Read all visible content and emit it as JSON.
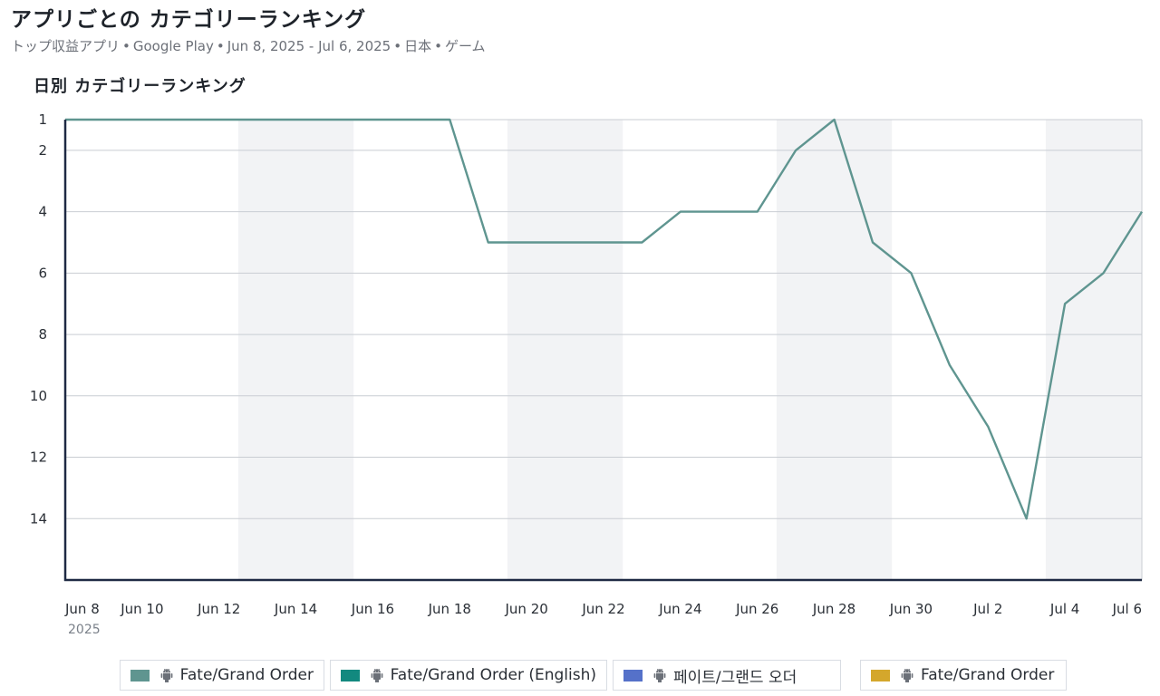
{
  "header": {
    "title": "アプリごとの カテゴリーランキング",
    "subtitle_parts": [
      "トップ収益アプリ",
      "Google Play",
      "Jun 8, 2025 - Jul 6, 2025",
      "日本",
      "ゲーム"
    ],
    "separator": "•"
  },
  "chart_title": "日別 カテゴリーランキング",
  "colors": {
    "series_line": "#5f9590",
    "grid": "#c9cdd3",
    "weekend_band": "#f2f3f5",
    "axis": "#1f2a44"
  },
  "legend": {
    "items": [
      {
        "label": "Fate/Grand Order",
        "color": "#5f9590",
        "icon": "android-icon"
      },
      {
        "label": "Fate/Grand Order (English)",
        "color": "#12897f",
        "icon": "android-icon"
      },
      {
        "label": "페이트/그랜드 오더",
        "color": "#5571c9",
        "icon": "android-icon"
      },
      {
        "label": "Fate/Grand Order",
        "color": "#d4a72c",
        "icon": "android-icon"
      }
    ]
  },
  "chart_data": {
    "type": "line",
    "title": "日別 カテゴリーランキング",
    "xlabel": "",
    "ylabel": "",
    "y_inverted": true,
    "ylim": [
      1,
      16
    ],
    "y_ticks": [
      1,
      2,
      4,
      6,
      8,
      10,
      12,
      14
    ],
    "x_ticks": [
      {
        "date": "2025-06-08",
        "label": "Jun 8",
        "sublabel": "2025"
      },
      {
        "date": "2025-06-10",
        "label": "Jun 10"
      },
      {
        "date": "2025-06-12",
        "label": "Jun 12"
      },
      {
        "date": "2025-06-14",
        "label": "Jun 14"
      },
      {
        "date": "2025-06-16",
        "label": "Jun 16"
      },
      {
        "date": "2025-06-18",
        "label": "Jun 18"
      },
      {
        "date": "2025-06-20",
        "label": "Jun 20"
      },
      {
        "date": "2025-06-22",
        "label": "Jun 22"
      },
      {
        "date": "2025-06-24",
        "label": "Jun 24"
      },
      {
        "date": "2025-06-26",
        "label": "Jun 26"
      },
      {
        "date": "2025-06-28",
        "label": "Jun 28"
      },
      {
        "date": "2025-06-30",
        "label": "Jun 30"
      },
      {
        "date": "2025-07-02",
        "label": "Jul 2"
      },
      {
        "date": "2025-07-04",
        "label": "Jul 4"
      },
      {
        "date": "2025-07-06",
        "label": "Jul 6"
      }
    ],
    "shaded_ranges": [
      [
        "2025-06-13",
        "2025-06-15"
      ],
      [
        "2025-06-20",
        "2025-06-22"
      ],
      [
        "2025-06-27",
        "2025-06-29"
      ],
      [
        "2025-07-04",
        "2025-07-06"
      ]
    ],
    "grid": true,
    "legend_position": "bottom",
    "series": [
      {
        "name": "Fate/Grand Order",
        "color": "#5f9590",
        "x": [
          "2025-06-08",
          "2025-06-09",
          "2025-06-10",
          "2025-06-11",
          "2025-06-12",
          "2025-06-13",
          "2025-06-14",
          "2025-06-15",
          "2025-06-16",
          "2025-06-17",
          "2025-06-18",
          "2025-06-19",
          "2025-06-20",
          "2025-06-21",
          "2025-06-22",
          "2025-06-23",
          "2025-06-24",
          "2025-06-25",
          "2025-06-26",
          "2025-06-27",
          "2025-06-28",
          "2025-06-29",
          "2025-06-30",
          "2025-07-01",
          "2025-07-02",
          "2025-07-03",
          "2025-07-04",
          "2025-07-05",
          "2025-07-06"
        ],
        "values": [
          1,
          1,
          1,
          1,
          1,
          1,
          1,
          1,
          1,
          1,
          1,
          5,
          5,
          5,
          5,
          5,
          4,
          4,
          4,
          2,
          1,
          5,
          6,
          9,
          11,
          14,
          7,
          6,
          4
        ]
      }
    ]
  }
}
